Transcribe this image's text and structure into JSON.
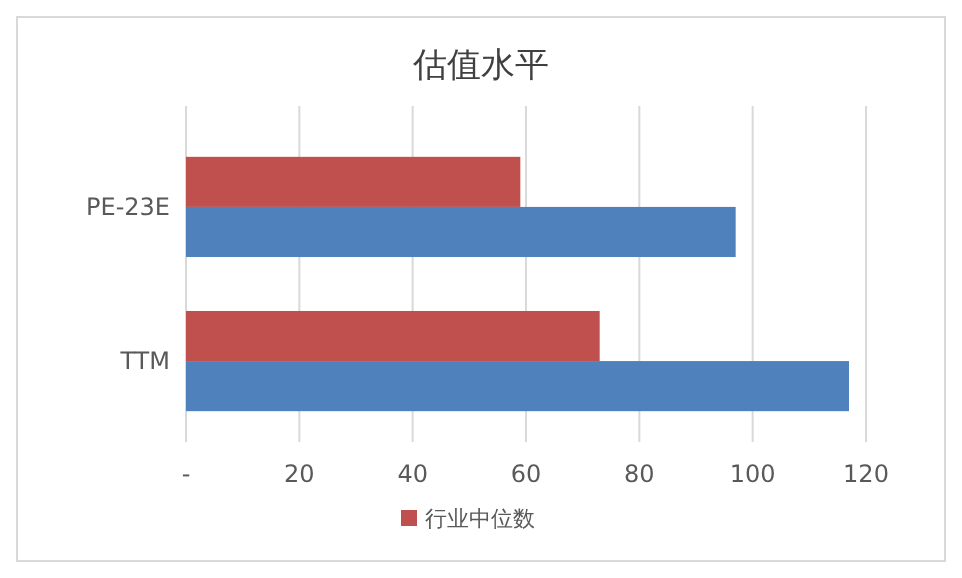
{
  "chart_data": {
    "type": "bar",
    "orientation": "horizontal",
    "title": "估值水平",
    "categories": [
      "PE-23E",
      "TTM"
    ],
    "series": [
      {
        "name": "行业中位数",
        "color": "#c0504d",
        "values": [
          59,
          73
        ]
      },
      {
        "color": "#4f81bd",
        "values": [
          97,
          117
        ]
      }
    ],
    "xlim": [
      0,
      120
    ],
    "xticks": [
      {
        "value": 0,
        "label": "-"
      },
      20,
      40,
      60,
      80,
      100,
      120
    ],
    "grid": "x",
    "legend": "bottom"
  }
}
